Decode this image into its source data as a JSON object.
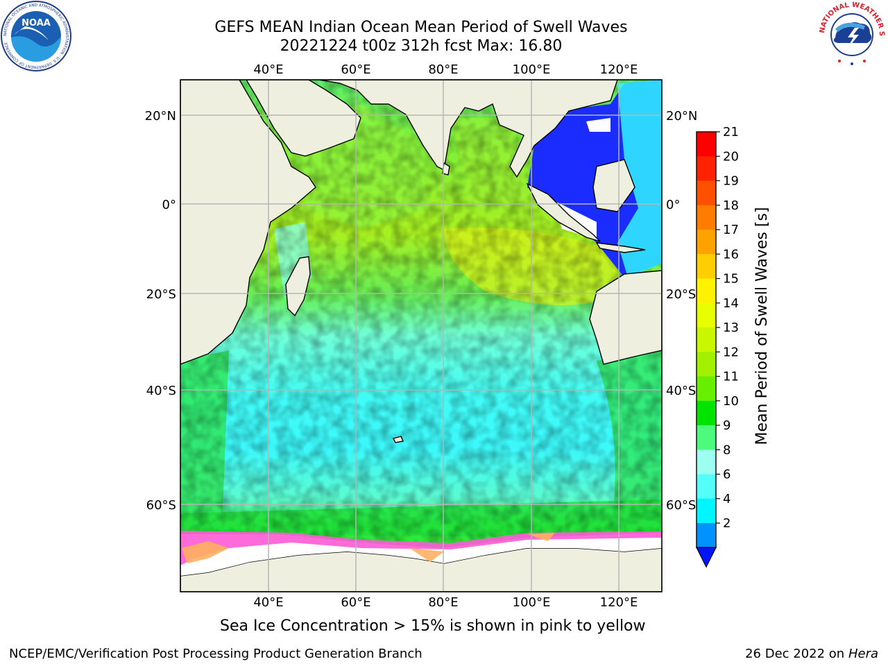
{
  "title": {
    "line1": "GEFS MEAN Indian Ocean Mean Period of Swell Waves",
    "line2": "20221224 t00z 312h fcst   Max: 16.80"
  },
  "map": {
    "lon_labels": [
      "40°E",
      "60°E",
      "80°E",
      "100°E",
      "120°E"
    ],
    "lat_labels": [
      "20°N",
      "0°",
      "20°S",
      "40°S",
      "60°S"
    ],
    "colors": {
      "land": "#efefdf",
      "grid": "#b5b5b5",
      "coast": "#000000"
    }
  },
  "colorbar": {
    "label": "Mean Period of Swell Waves [s]",
    "ticks": [
      "21",
      "20",
      "19",
      "18",
      "17",
      "16",
      "15",
      "14",
      "13",
      "12",
      "11",
      "10",
      "9",
      "8",
      "6",
      "4",
      "2"
    ],
    "colors": [
      "#ff0000",
      "#ff2200",
      "#ff5000",
      "#ff7c00",
      "#ffa200",
      "#ffcd00",
      "#fff200",
      "#e8ff00",
      "#c8f700",
      "#a0f000",
      "#68ee00",
      "#00e400",
      "#4cfb7c",
      "#9dfff0",
      "#55fff9",
      "#00f5ff",
      "#0092ff"
    ],
    "under_color": "#0014ff"
  },
  "logos": {
    "noaa": {
      "text": "NOAA",
      "ring_text": "NATIONAL OCEANIC AND ATMOSPHERIC ADMINISTRATION · U.S. DEPARTMENT OF COMMERCE"
    },
    "nws": {
      "ring_text": "NATIONAL WEATHER SERVICE"
    }
  },
  "caption": "Sea Ice Concentration > 15% is shown in pink to yellow",
  "footer": {
    "credit": "NCEP/EMC/Verification Post Processing Product Generation Branch",
    "date": "26 Dec 2022 on",
    "host": "Hera"
  }
}
